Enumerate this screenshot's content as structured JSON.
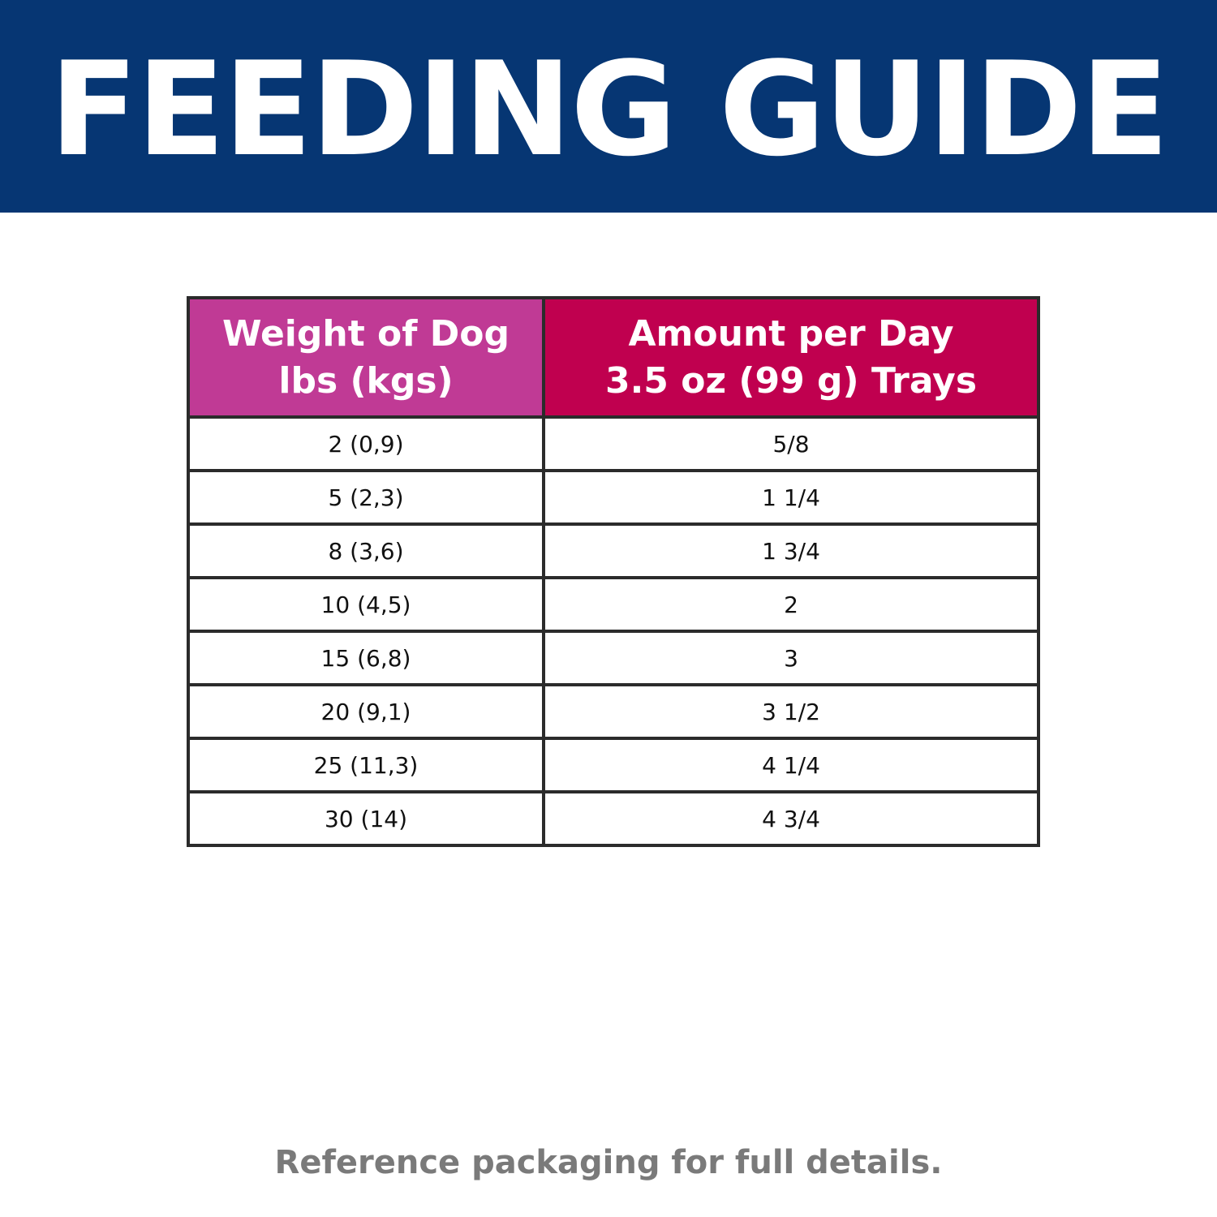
{
  "banner": {
    "title": "FEEDING GUIDE",
    "background_color": "#063673",
    "text_color": "#ffffff"
  },
  "table": {
    "headers": [
      {
        "line1": "Weight of Dog",
        "line2": "lbs (kgs)",
        "color": "#c03a95"
      },
      {
        "line1": "Amount per Day",
        "line2": "3.5 oz (99 g) Trays",
        "color": "#c0004f"
      }
    ],
    "rows": [
      {
        "weight": "2 (0,9)",
        "amount": "5/8"
      },
      {
        "weight": "5 (2,3)",
        "amount": "1 1/4"
      },
      {
        "weight": "8 (3,6)",
        "amount": "1 3/4"
      },
      {
        "weight": "10 (4,5)",
        "amount": "2"
      },
      {
        "weight": "15 (6,8)",
        "amount": "3"
      },
      {
        "weight": "20 (9,1)",
        "amount": "3 1/2"
      },
      {
        "weight": "25 (11,3)",
        "amount": "4 1/4"
      },
      {
        "weight": "30 (14)",
        "amount": "4 3/4"
      }
    ]
  },
  "footer": {
    "note": "Reference packaging for full details.",
    "text_color": "#7a7a7a"
  }
}
